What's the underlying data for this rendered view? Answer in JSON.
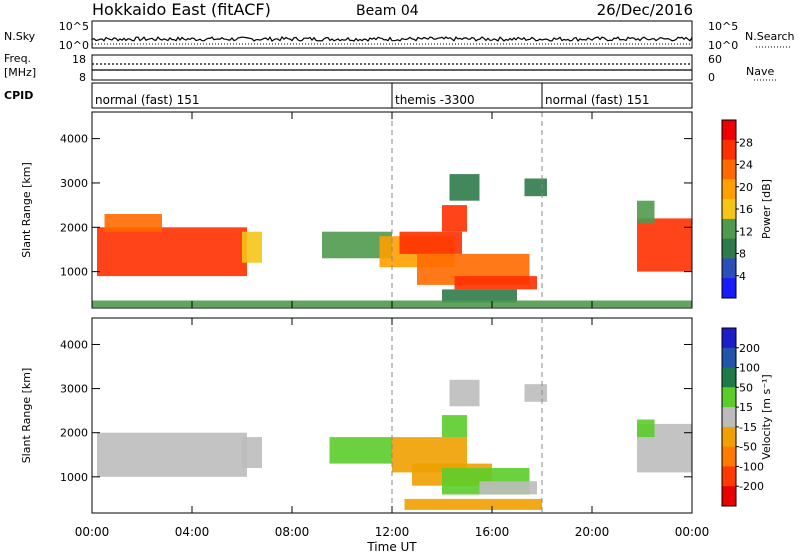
{
  "header": {
    "station": "Hokkaido East (fitACF)",
    "beam": "Beam 04",
    "date": "26/Dec/2016"
  },
  "noise_panel": {
    "left_label": "N.Sky",
    "right_label": "N.Search",
    "ticks_left": [
      "10^5",
      "10^0"
    ],
    "ticks_right": [
      "10^5",
      "10^0"
    ]
  },
  "freq_panel": {
    "left_label_top": "Freq.",
    "left_label_unit": "[MHz]",
    "ticks_left": [
      "18",
      "8"
    ],
    "right_label": "Nave",
    "ticks_right": [
      "60",
      "0"
    ]
  },
  "cpid_panel": {
    "label": "CPID",
    "modes": [
      {
        "name": "normal (fast) 151",
        "start_hour": 0,
        "end_hour": 12
      },
      {
        "name": "themis -3300",
        "start_hour": 12,
        "end_hour": 18
      },
      {
        "name": "normal (fast) 151",
        "start_hour": 18,
        "end_hour": 24
      }
    ]
  },
  "x_axis": {
    "label": "Time UT",
    "ticks": [
      "00:00",
      "04:00",
      "08:00",
      "12:00",
      "16:00",
      "20:00",
      "00:00"
    ]
  },
  "colors": {
    "power_scale": [
      "#1a1aff",
      "#2a4fb8",
      "#2f7a4a",
      "#4f9a4f",
      "#f5c518",
      "#ffa000",
      "#ff6a00",
      "#ff3000",
      "#ee0000"
    ],
    "velocity_scale": [
      "#1c1cc8",
      "#2255aa",
      "#1e7a46",
      "#5ccc2a",
      "#bcbcbc",
      "#f0a000",
      "#ff7a00",
      "#ff3a00",
      "#e80000"
    ]
  },
  "chart_data": [
    {
      "type": "heatmap",
      "title": "",
      "xlabel": "Time UT",
      "ylabel": "Slant Range [km]",
      "xlim": [
        0,
        24
      ],
      "ylim": [
        180,
        4600
      ],
      "yticks": [
        "1000",
        "2000",
        "3000",
        "4000"
      ],
      "colorbar": {
        "label": "Power [dB]",
        "ticks": [
          "4",
          "8",
          "12",
          "16",
          "20",
          "24",
          "28"
        ],
        "range": [
          0,
          32
        ]
      },
      "regions": [
        {
          "t0": 0.2,
          "t1": 6.2,
          "r0": 900,
          "r1": 2000,
          "level": 26
        },
        {
          "t0": 0.5,
          "t1": 2.8,
          "r0": 1900,
          "r1": 2300,
          "level": 22
        },
        {
          "t0": 6.0,
          "t1": 6.8,
          "r0": 1200,
          "r1": 1900,
          "level": 16
        },
        {
          "t0": 9.2,
          "t1": 12.0,
          "r0": 1300,
          "r1": 1900,
          "level": 12
        },
        {
          "t0": 11.5,
          "t1": 14.5,
          "r0": 1100,
          "r1": 1800,
          "level": 18
        },
        {
          "t0": 12.3,
          "t1": 14.8,
          "r0": 1400,
          "r1": 1900,
          "level": 26
        },
        {
          "t0": 13.0,
          "t1": 17.5,
          "r0": 700,
          "r1": 1400,
          "level": 22
        },
        {
          "t0": 14.5,
          "t1": 17.8,
          "r0": 600,
          "r1": 900,
          "level": 27
        },
        {
          "t0": 14.0,
          "t1": 17.0,
          "r0": 300,
          "r1": 600,
          "level": 10
        },
        {
          "t0": 14.0,
          "t1": 15.0,
          "r0": 1900,
          "r1": 2500,
          "level": 26
        },
        {
          "t0": 14.3,
          "t1": 15.5,
          "r0": 2600,
          "r1": 3200,
          "level": 8
        },
        {
          "t0": 17.3,
          "t1": 18.2,
          "r0": 2700,
          "r1": 3100,
          "level": 8
        },
        {
          "t0": 0.0,
          "t1": 24.0,
          "r0": 200,
          "r1": 350,
          "level": 14
        },
        {
          "t0": 21.8,
          "t1": 24.0,
          "r0": 1000,
          "r1": 2200,
          "level": 26
        },
        {
          "t0": 21.8,
          "t1": 22.5,
          "r0": 2100,
          "r1": 2600,
          "level": 12
        }
      ]
    },
    {
      "type": "heatmap",
      "title": "",
      "xlabel": "Time UT",
      "ylabel": "Slant Range [km]",
      "xlim": [
        0,
        24
      ],
      "ylim": [
        180,
        4600
      ],
      "yticks": [
        "1000",
        "2000",
        "3000",
        "4000"
      ],
      "colorbar": {
        "label": "Velocity [m s⁻¹]",
        "ticks": [
          "200",
          "100",
          "50",
          "15",
          "-15",
          "-50",
          "-100",
          "-200"
        ],
        "range": [
          -250,
          250
        ]
      },
      "regions": [
        {
          "t0": 0.2,
          "t1": 6.2,
          "r0": 1000,
          "r1": 2000,
          "level": 0
        },
        {
          "t0": 6.0,
          "t1": 6.8,
          "r0": 1200,
          "r1": 1900,
          "level": 0
        },
        {
          "t0": 9.5,
          "t1": 12.0,
          "r0": 1300,
          "r1": 1900,
          "level": 60
        },
        {
          "t0": 12.0,
          "t1": 15.0,
          "r0": 1100,
          "r1": 1900,
          "level": -70
        },
        {
          "t0": 12.8,
          "t1": 16.0,
          "r0": 800,
          "r1": 1300,
          "level": -40
        },
        {
          "t0": 14.0,
          "t1": 17.5,
          "r0": 600,
          "r1": 1200,
          "level": 60
        },
        {
          "t0": 15.5,
          "t1": 17.8,
          "r0": 600,
          "r1": 900,
          "level": 0
        },
        {
          "t0": 14.0,
          "t1": 15.0,
          "r0": 1900,
          "r1": 2400,
          "level": 40
        },
        {
          "t0": 14.3,
          "t1": 15.5,
          "r0": 2600,
          "r1": 3200,
          "level": 0
        },
        {
          "t0": 17.3,
          "t1": 18.2,
          "r0": 2700,
          "r1": 3100,
          "level": 0
        },
        {
          "t0": 21.8,
          "t1": 24.0,
          "r0": 1100,
          "r1": 2200,
          "level": 0
        },
        {
          "t0": 21.8,
          "t1": 22.5,
          "r0": 1900,
          "r1": 2300,
          "level": 40
        },
        {
          "t0": 12.5,
          "t1": 18.0,
          "r0": 250,
          "r1": 500,
          "level": -40
        }
      ]
    }
  ]
}
